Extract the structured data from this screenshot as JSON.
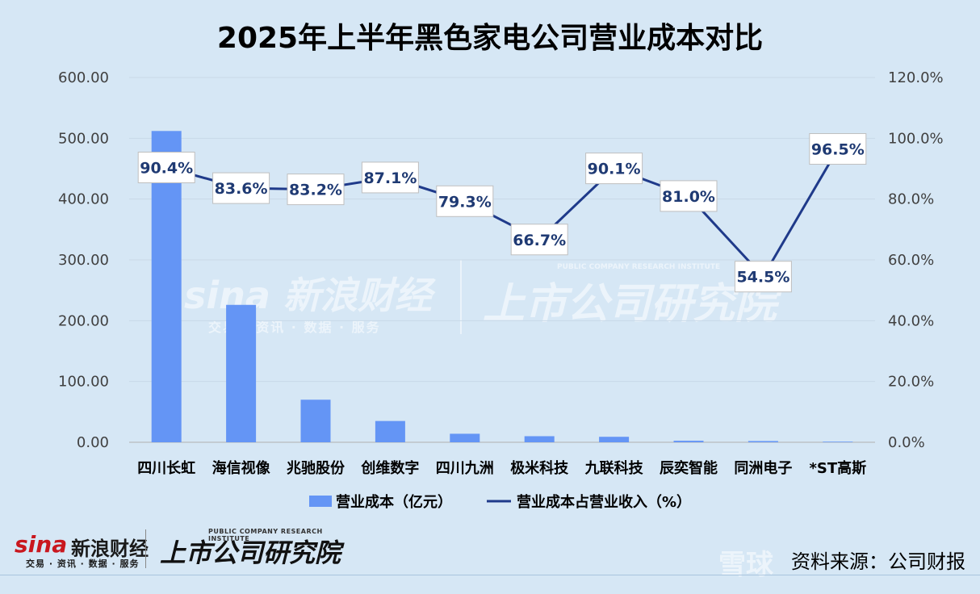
{
  "chart_data": {
    "type": "bar+line",
    "title": "2025年上半年黑色家电公司营业成本对比",
    "categories": [
      "四川长虹",
      "海信视像",
      "兆驰股份",
      "创维数字",
      "四川九洲",
      "极米科技",
      "九联科技",
      "辰奕智能",
      "同洲电子",
      "*ST高斯"
    ],
    "series": [
      {
        "name": "营业成本（亿元）",
        "type": "bar",
        "axis": "left",
        "color": "#6495f5",
        "values": [
          512.0,
          226.0,
          70.0,
          35.0,
          14.0,
          10.0,
          9.0,
          2.5,
          2.0,
          1.0
        ]
      },
      {
        "name": "营业成本占营业收入（%）",
        "type": "line",
        "axis": "right",
        "color": "#1f3a8a",
        "values": [
          90.4,
          83.6,
          83.2,
          87.1,
          79.3,
          66.7,
          90.1,
          81.0,
          54.5,
          96.5
        ],
        "labels": [
          "90.4%",
          "83.6%",
          "83.2%",
          "87.1%",
          "79.3%",
          "66.7%",
          "90.1%",
          "81.0%",
          "54.5%",
          "96.5%"
        ]
      }
    ],
    "y_left": {
      "min": 0,
      "max": 600,
      "ticks": [
        "0.00",
        "100.00",
        "200.00",
        "300.00",
        "400.00",
        "500.00",
        "600.00"
      ]
    },
    "y_right": {
      "min": 0,
      "max": 120,
      "ticks": [
        "0.0%",
        "20.0%",
        "40.0%",
        "60.0%",
        "80.0%",
        "100.0%",
        "120.0%"
      ]
    },
    "grid": true,
    "legend_position": "bottom"
  },
  "footer": {
    "source": "资料来源：公司财报",
    "sina_logo": "sina",
    "sina_name": "新浪财经",
    "sina_tagline": "交易 · 资讯 · 数据 · 服务",
    "ssi_name": "上市公司研究院",
    "ssi_en": "PUBLIC COMPANY RESEARCH INSTITUTE",
    "xueqiu": "雪球"
  },
  "watermark": {
    "sina": "sina 新浪财经",
    "tagline": "交易 · 资讯 · 数据 · 服务",
    "ssi": "上市公司研究院",
    "ssi_en": "PUBLIC COMPANY RESEARCH INSTITUTE"
  }
}
